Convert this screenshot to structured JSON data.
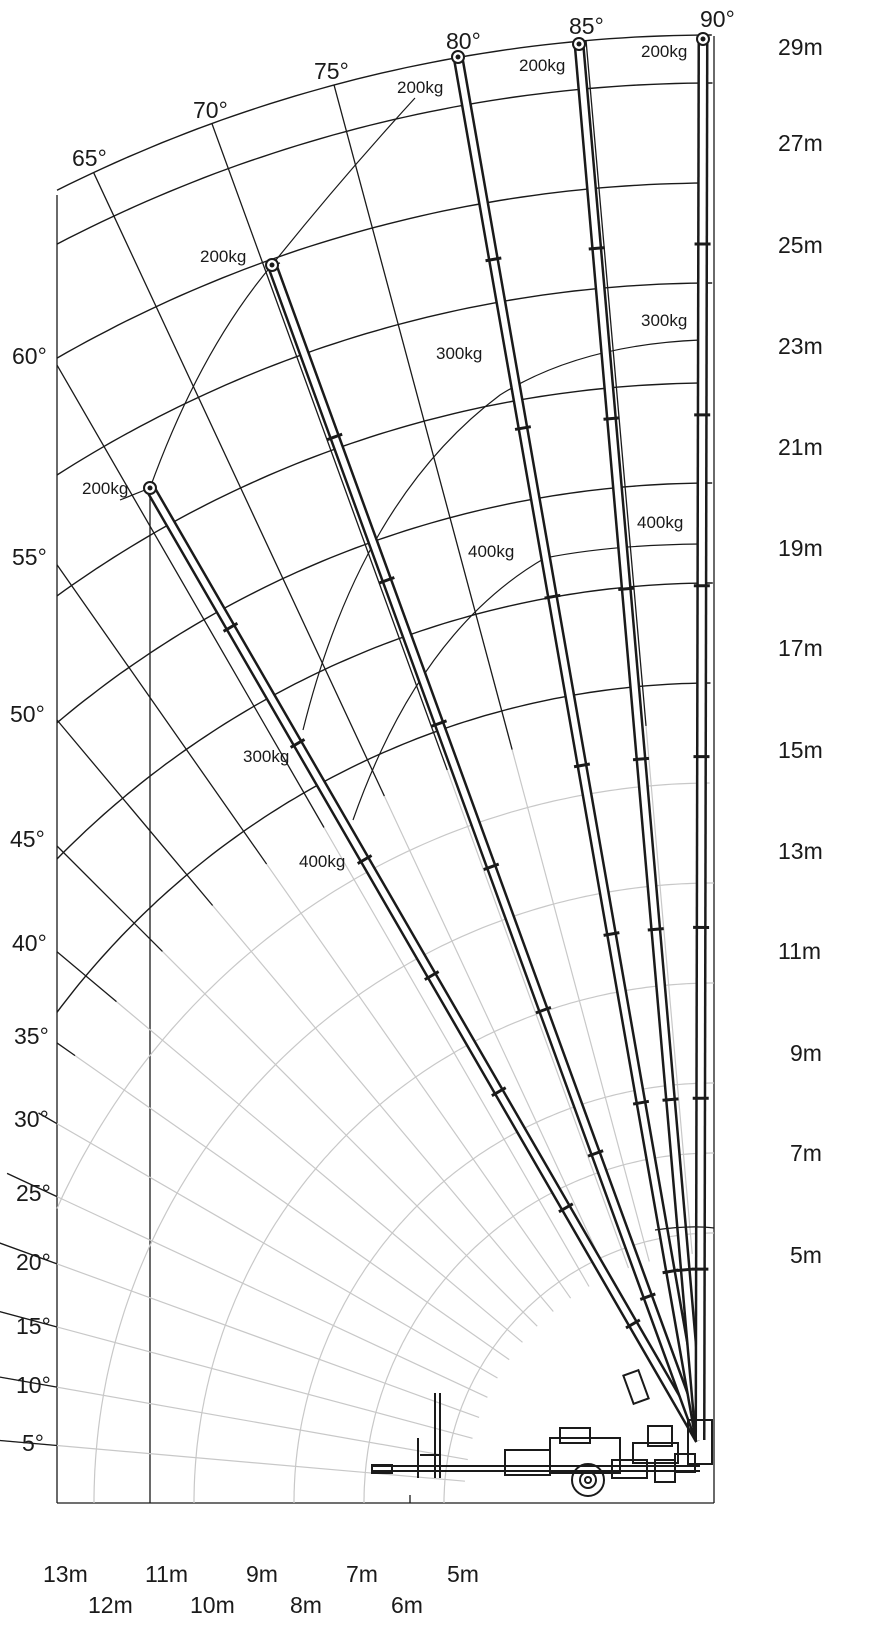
{
  "diagram": {
    "angle_labels_top": [
      "65°",
      "70°",
      "75°",
      "80°",
      "85°",
      "90°"
    ],
    "angle_labels_left": [
      "60°",
      "55°",
      "50°",
      "45°",
      "40°",
      "35°",
      "30°",
      "25°",
      "20°",
      "15°",
      "10°",
      "5°"
    ],
    "height_labels": [
      "29m",
      "27m",
      "25m",
      "23m",
      "21m",
      "19m",
      "17m",
      "15m",
      "13m",
      "11m",
      "9m",
      "7m",
      "5m"
    ],
    "outreach_labels_upper": [
      "13m",
      "11m",
      "9m",
      "7m",
      "5m"
    ],
    "outreach_labels_lower": [
      "12m",
      "10m",
      "8m",
      "6m"
    ],
    "load_labels": [
      {
        "text": "200kg",
        "boom": "70°"
      },
      {
        "text": "200kg",
        "boom": "75°"
      },
      {
        "text": "200kg",
        "boom": "80°"
      },
      {
        "text": "200kg",
        "boom": "85°"
      },
      {
        "text": "200kg",
        "boom": "90°"
      },
      {
        "text": "300kg",
        "boom": "70°"
      },
      {
        "text": "300kg",
        "boom": "85°"
      },
      {
        "text": "300kg",
        "boom": "90°"
      },
      {
        "text": "400kg",
        "boom": "70°"
      },
      {
        "text": "400kg",
        "boom": "85°"
      },
      {
        "text": "400kg",
        "boom": "90°"
      }
    ],
    "booms": [
      "70°",
      "75°",
      "80°",
      "85°",
      "90°"
    ]
  },
  "colors": {
    "line": "#1a1a1a",
    "grid_light": "#c8c8c8",
    "background": "#ffffff"
  }
}
